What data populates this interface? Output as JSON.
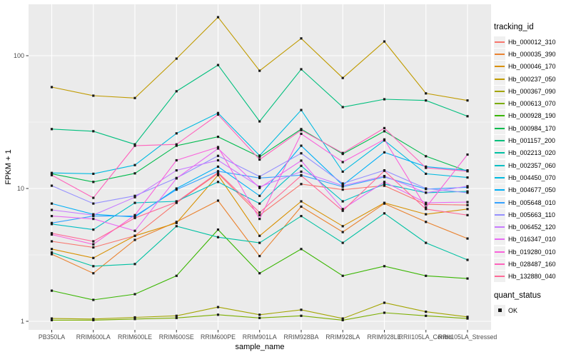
{
  "chart_data": {
    "type": "line",
    "title": "",
    "xlabel": "sample_name",
    "ylabel": "FPKM + 1",
    "y_scale": "log10",
    "y_ticks": [
      1,
      10,
      100
    ],
    "y_minor_ticks": [
      3.162,
      31.62
    ],
    "ylim": [
      0.86,
      245
    ],
    "grid": "on",
    "legend_position": "right",
    "panel_background": "#EBEBEB",
    "gridline_color": "#FFFFFF",
    "tick_label_color": "#4D4D4D",
    "point_shape": "filled-square",
    "point_color": "#1A1A1A",
    "categories": [
      "PB350LA",
      "RRIM600LA",
      "RRIM600LE",
      "RRIM600SE",
      "RRIM600PE",
      "RRIM901LA",
      "RRIM928BA",
      "RRIM928LA",
      "RRIM928LE",
      "RRII105LA_Control",
      "RRII105LA_Stressed"
    ],
    "series": [
      {
        "name": "Hb_000012_310",
        "color": "#F8766D",
        "values": [
          4.0,
          3.6,
          4.4,
          7.8,
          13.0,
          6.3,
          10.8,
          9.8,
          10.5,
          7.6,
          7.5
        ]
      },
      {
        "name": "Hb_000035_390",
        "color": "#EA8331",
        "values": [
          3.2,
          2.3,
          4.1,
          5.6,
          8.1,
          3.1,
          7.3,
          4.7,
          7.7,
          5.6,
          4.2
        ]
      },
      {
        "name": "Hb_000046_170",
        "color": "#D89000",
        "values": [
          3.5,
          3.0,
          4.4,
          5.5,
          12.6,
          4.4,
          8.0,
          5.2,
          7.8,
          6.4,
          7.0
        ]
      },
      {
        "name": "Hb_000237_050",
        "color": "#C09B00",
        "values": [
          58,
          50,
          48,
          95,
          195,
          77,
          135,
          68,
          128,
          52,
          46
        ]
      },
      {
        "name": "Hb_000367_090",
        "color": "#A3A500",
        "values": [
          1.05,
          1.04,
          1.07,
          1.1,
          1.28,
          1.12,
          1.22,
          1.05,
          1.38,
          1.18,
          1.08
        ]
      },
      {
        "name": "Hb_000613_070",
        "color": "#7CAE00",
        "values": [
          1.02,
          1.02,
          1.04,
          1.06,
          1.12,
          1.06,
          1.1,
          1.02,
          1.16,
          1.1,
          1.05
        ]
      },
      {
        "name": "Hb_000928_190",
        "color": "#39B600",
        "values": [
          1.7,
          1.45,
          1.6,
          2.2,
          4.9,
          2.3,
          3.5,
          2.2,
          2.6,
          2.2,
          2.1
        ]
      },
      {
        "name": "Hb_000984_170",
        "color": "#00BB4E",
        "values": [
          12.9,
          11.2,
          13.0,
          21.0,
          24.5,
          17.3,
          28.0,
          18.2,
          27.0,
          17.5,
          13.5
        ]
      },
      {
        "name": "Hb_001157_200",
        "color": "#00BF7D",
        "values": [
          28,
          27,
          21.5,
          54,
          85,
          32,
          79,
          41,
          47,
          46,
          35
        ]
      },
      {
        "name": "Hb_002213_020",
        "color": "#00C1A3",
        "values": [
          3.3,
          2.6,
          2.7,
          5.2,
          4.3,
          3.9,
          6.2,
          3.9,
          6.5,
          3.9,
          2.9
        ]
      },
      {
        "name": "Hb_002357_060",
        "color": "#00BFC4",
        "values": [
          5.4,
          4.9,
          7.8,
          8.0,
          11.2,
          7.7,
          14.8,
          8.0,
          10.8,
          9.3,
          9.5
        ]
      },
      {
        "name": "Hb_004450_070",
        "color": "#00BAE0",
        "values": [
          13.1,
          12.9,
          15.0,
          26.0,
          37.0,
          17.7,
          39.0,
          13.4,
          23.0,
          12.9,
          12.1
        ]
      },
      {
        "name": "Hb_004677_050",
        "color": "#00B0F6",
        "values": [
          7.7,
          6.4,
          6.1,
          10.0,
          14.6,
          8.8,
          21.0,
          10.6,
          18.7,
          14.6,
          13.7
        ]
      },
      {
        "name": "Hb_005648_010",
        "color": "#35A2FF",
        "values": [
          5.5,
          6.2,
          6.2,
          9.8,
          13.5,
          12.0,
          12.6,
          10.3,
          12.2,
          9.9,
          10.2
        ]
      },
      {
        "name": "Hb_005663_110",
        "color": "#9590FF",
        "values": [
          10.5,
          7.7,
          8.8,
          12.0,
          17.6,
          12.3,
          18.4,
          10.9,
          13.7,
          10.0,
          9.3
        ]
      },
      {
        "name": "Hb_006452_120",
        "color": "#C77CFF",
        "values": [
          6.9,
          6.3,
          8.6,
          13.7,
          16.3,
          10.3,
          13.4,
          10.5,
          12.4,
          9.3,
          10.4
        ]
      },
      {
        "name": "Hb_016347_010",
        "color": "#E76BF3",
        "values": [
          6.2,
          5.9,
          4.8,
          11.9,
          20.0,
          10.1,
          16.2,
          7.0,
          11.2,
          7.8,
          7.9
        ]
      },
      {
        "name": "Hb_019280_010",
        "color": "#FA62DB",
        "values": [
          4.5,
          3.8,
          6.3,
          16.3,
          20.5,
          5.9,
          25.8,
          15.8,
          23.4,
          7.2,
          18.0
        ]
      },
      {
        "name": "Hb_028487_160",
        "color": "#FF62BC",
        "values": [
          12.6,
          8.5,
          21.0,
          21.5,
          36.0,
          16.5,
          27.5,
          18.5,
          28.5,
          14.3,
          13.5
        ]
      },
      {
        "name": "Hb_132880_040",
        "color": "#FF6A98",
        "values": [
          4.6,
          4.0,
          6.0,
          7.9,
          13.2,
          6.6,
          12.5,
          6.8,
          13.6,
          7.0,
          6.3
        ]
      }
    ]
  },
  "legend": {
    "color_legend": {
      "title": "tracking_id"
    },
    "shape_legend": {
      "title": "quant_status",
      "items": [
        {
          "label": "OK"
        }
      ]
    }
  },
  "axes": {
    "x_title": "sample_name",
    "y_title": "FPKM + 1",
    "y_tick_labels": [
      "100",
      "10",
      "1"
    ]
  }
}
